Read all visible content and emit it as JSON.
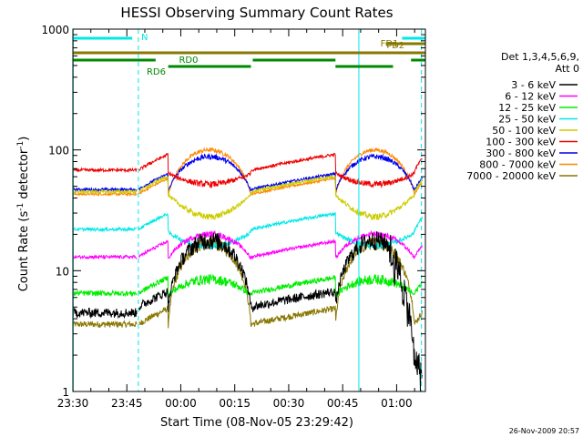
{
  "chart_data": {
    "type": "line",
    "title": "HESSI Observing Summary Count Rates",
    "xlabel": "Start Time (08-Nov-05 23:29:42)",
    "ylabel_main": "Count Rate (s",
    "ylabel_sup1": "-1",
    "ylabel_mid": " detector",
    "ylabel_sup2": "-1",
    "ylabel_end": ")",
    "y_scale": "log",
    "ylim": [
      1,
      1000
    ],
    "xlim_minutes": [
      0,
      98
    ],
    "x_ticks": [
      {
        "minute": 0,
        "label": "23:30"
      },
      {
        "minute": 15,
        "label": "23:45"
      },
      {
        "minute": 30,
        "label": "00:00"
      },
      {
        "minute": 45,
        "label": "00:15"
      },
      {
        "minute": 60,
        "label": "00:30"
      },
      {
        "minute": 75,
        "label": "00:45"
      },
      {
        "minute": 90,
        "label": "01:00"
      }
    ],
    "y_ticks": [
      {
        "value": 1,
        "label": "1"
      },
      {
        "value": 10,
        "label": "10"
      },
      {
        "value": 100,
        "label": "100"
      },
      {
        "value": 1000,
        "label": "1000"
      }
    ],
    "legend_header": [
      "Det 1,3,4,5,6,9,",
      "Att 0"
    ],
    "legend_placement": "right",
    "series": [
      {
        "name": "3 - 6 keV",
        "color": "#000000",
        "base": 5,
        "day": 18,
        "noise": 0.09
      },
      {
        "name": "6 - 12 keV",
        "color": "#ff00ff",
        "base": 13,
        "day": 20,
        "noise": 0.03
      },
      {
        "name": "12 - 25 keV",
        "color": "#00ee00",
        "base": 6.5,
        "day": 8.5,
        "noise": 0.05
      },
      {
        "name": "25 - 50 keV",
        "color": "#00e8e8",
        "base": 22,
        "day": 16,
        "noise": 0.03
      },
      {
        "name": "50 - 100 keV",
        "color": "#cccc00",
        "base": 45,
        "day": 28,
        "noise": 0.03
      },
      {
        "name": "100 - 300 keV",
        "color": "#ee0000",
        "base": 68,
        "day": 52,
        "noise": 0.03
      },
      {
        "name": "300 - 800 keV",
        "color": "#0000ee",
        "base": 47,
        "day": 88,
        "noise": 0.025
      },
      {
        "name": "800 - 7000 keV",
        "color": "#ff8800",
        "base": 43,
        "day": 100,
        "noise": 0.02
      },
      {
        "name": "7000 - 20000 keV",
        "color": "#887700",
        "base": 3.6,
        "day": 17,
        "noise": 0.06
      }
    ],
    "flags": [
      {
        "label": "N",
        "color": "#00e8e8",
        "segments": [
          [
            0,
            16.5
          ],
          [
            91.5,
            98
          ]
        ]
      },
      {
        "label": "FD1",
        "color": "#887700",
        "segments": [
          [
            0,
            98
          ]
        ]
      },
      {
        "label": "FD2",
        "color": "#887700",
        "segments": [
          [
            87,
            98
          ]
        ]
      },
      {
        "label": "RD0",
        "color": "#008800",
        "segments": [
          [
            0,
            23
          ],
          [
            50,
            73
          ],
          [
            94,
            98
          ]
        ]
      },
      {
        "label": "RD6",
        "color": "#008800",
        "segments": [
          [
            26.5,
            49.5
          ],
          [
            73,
            89
          ]
        ]
      }
    ],
    "vlines": [
      {
        "minute": 0.1,
        "style": "solid",
        "color": "#00e8e8"
      },
      {
        "minute": 18.2,
        "style": "dashed",
        "color": "#00e8e8"
      },
      {
        "minute": 79.5,
        "style": "solid",
        "color": "#00e8e8"
      },
      {
        "minute": 96.9,
        "style": "dashed",
        "color": "#00e8e8"
      }
    ],
    "footer_date": "26-Nov-2009 20:57"
  }
}
